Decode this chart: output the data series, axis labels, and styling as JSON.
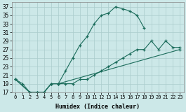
{
  "xlabel": "Humidex (Indice chaleur)",
  "bg_color": "#cce8e8",
  "grid_color": "#aacccc",
  "line_color": "#1a6b5a",
  "xlim": [
    -0.5,
    23.5
  ],
  "ylim": [
    17,
    38
  ],
  "xticks": [
    0,
    1,
    2,
    3,
    4,
    5,
    6,
    7,
    8,
    9,
    10,
    11,
    12,
    13,
    14,
    15,
    16,
    17,
    18,
    19,
    20,
    21,
    22,
    23
  ],
  "yticks": [
    17,
    19,
    21,
    23,
    25,
    27,
    29,
    31,
    33,
    35,
    37
  ],
  "series": [
    {
      "x": [
        0,
        1,
        2,
        3,
        4,
        5,
        6,
        7,
        8,
        9,
        10,
        11,
        12,
        13,
        14,
        15,
        16,
        17,
        18
      ],
      "y": [
        20,
        19,
        17,
        17,
        17,
        19,
        19,
        22,
        25,
        28,
        30,
        33,
        35,
        35.5,
        37,
        36.5,
        36,
        35,
        32
      ]
    },
    {
      "x": [
        0,
        2,
        3,
        4,
        5,
        6,
        7,
        8,
        9,
        10,
        11,
        12,
        13,
        14,
        15,
        16,
        17,
        18,
        19,
        20,
        21,
        22,
        23
      ],
      "y": [
        20,
        17,
        17,
        17,
        19,
        19,
        19,
        19,
        20,
        20,
        21,
        22,
        23,
        24,
        25,
        26,
        27,
        27,
        29,
        27,
        29,
        27.5,
        27.5
      ]
    },
    {
      "x": [
        0,
        2,
        3,
        4,
        5,
        6,
        23
      ],
      "y": [
        20,
        17,
        17,
        17,
        19,
        19,
        27
      ]
    }
  ]
}
